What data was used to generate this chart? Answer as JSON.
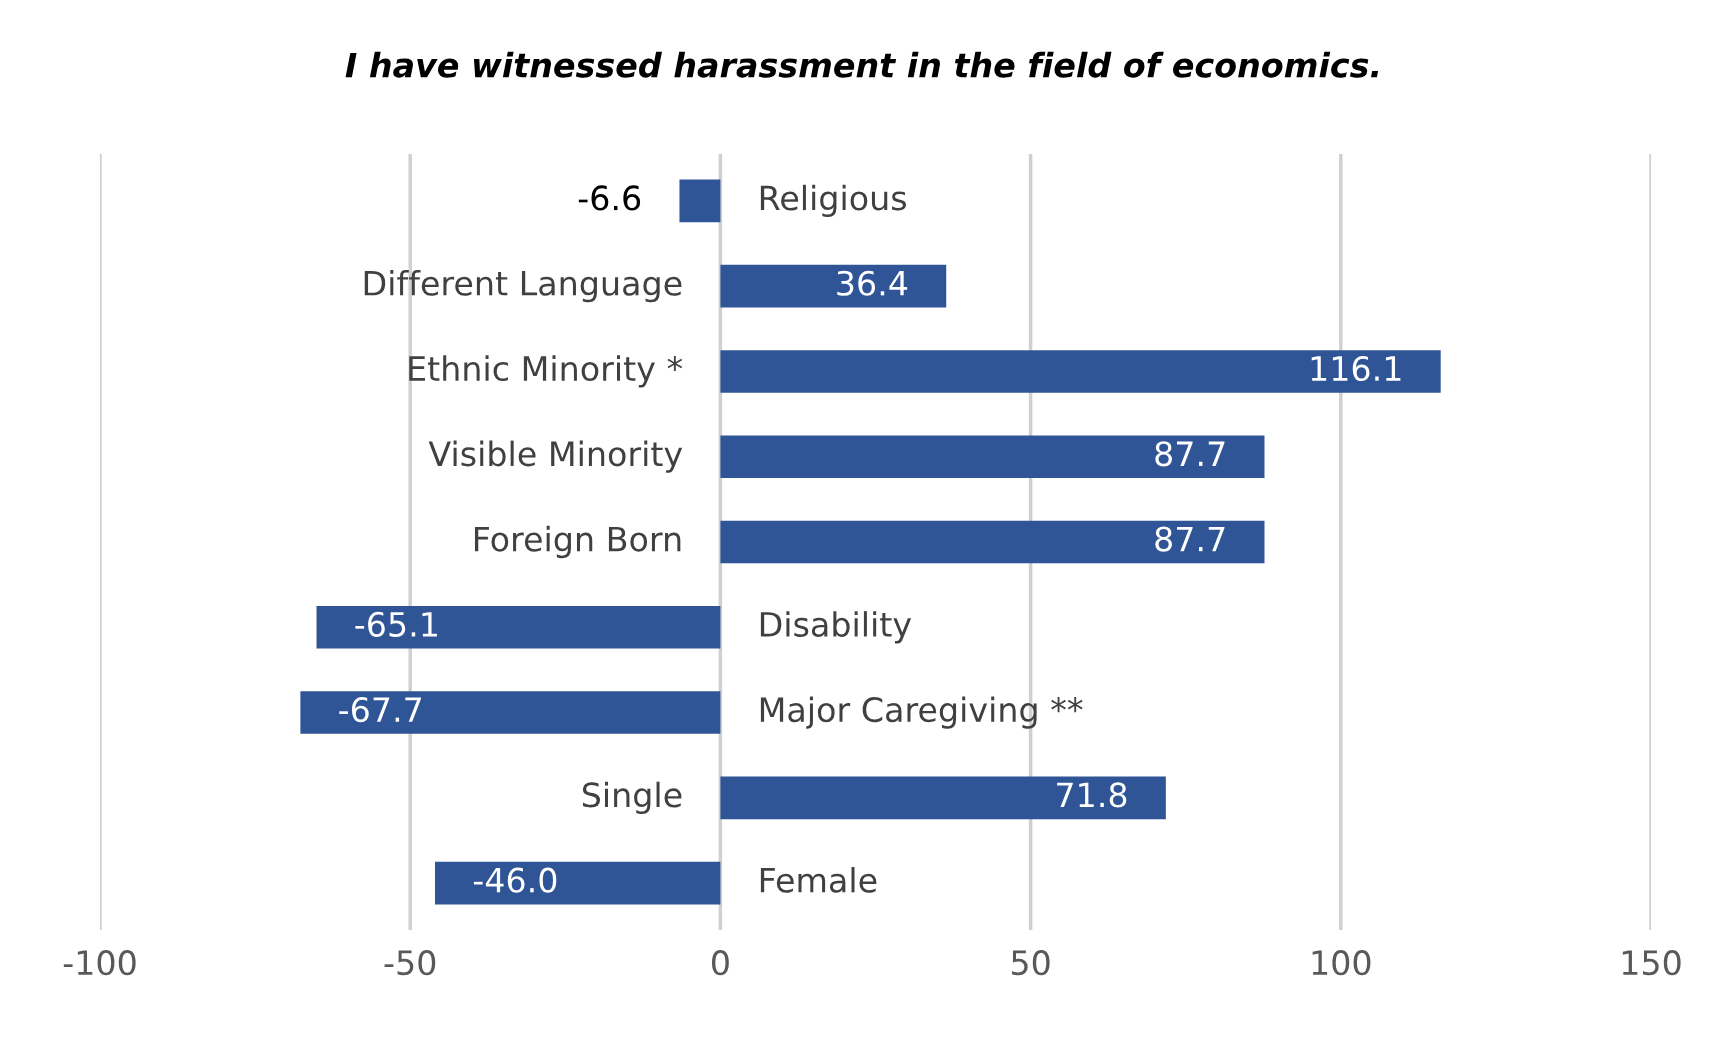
{
  "chart_data": {
    "type": "bar",
    "orientation": "horizontal",
    "title": "I have witnessed harassment in the field of economics.",
    "categories": [
      "Religious",
      "Different Language",
      "Ethnic Minority *",
      "Visible Minority",
      "Foreign Born",
      "Disability",
      "Major Caregiving **",
      "Single",
      "Female"
    ],
    "values": [
      -6.6,
      36.4,
      116.1,
      87.7,
      87.7,
      -65.1,
      -67.7,
      71.8,
      -46.0
    ],
    "value_labels": [
      "-6.6",
      "36.4",
      "116.1",
      "87.7",
      "87.7",
      "-65.1",
      "-67.7",
      "71.8",
      "-46.0"
    ],
    "color": "#2f5597",
    "xlim": [
      -100,
      150
    ],
    "xticks": [
      -100,
      -50,
      0,
      50,
      100,
      150
    ],
    "grid": "x",
    "legend": false
  }
}
